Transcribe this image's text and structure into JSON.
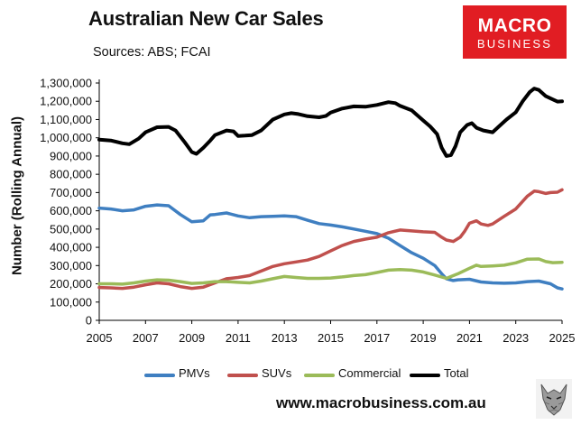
{
  "header": {
    "title": "Australian New Car Sales",
    "subtitle": "Sources: ABS; FCAI"
  },
  "logo": {
    "line1": "MACRO",
    "line2": "BUSINESS",
    "color": "#e11d23",
    "icon": "wolf-icon"
  },
  "footer": {
    "url": "www.macrobusiness.com.au"
  },
  "chart_data": {
    "type": "line",
    "title": "Australian New Car Sales",
    "ylabel": "Number (Rolling Annual)",
    "xlabel": "",
    "xlim": [
      2005,
      2025
    ],
    "ylim": [
      0,
      1300000
    ],
    "grid": false,
    "legend_position": "bottom",
    "x_ticks": [
      2005,
      2007,
      2009,
      2011,
      2013,
      2015,
      2017,
      2019,
      2021,
      2023,
      2025
    ],
    "x_tick_labels": [
      "2005",
      "2007",
      "2009",
      "2011",
      "2013",
      "2015",
      "2017",
      "2019",
      "2021",
      "2023",
      "2025"
    ],
    "y_ticks": [
      0,
      100000,
      200000,
      300000,
      400000,
      500000,
      600000,
      700000,
      800000,
      900000,
      1000000,
      1100000,
      1200000,
      1300000
    ],
    "y_tick_labels": [
      "0",
      "100,000",
      "200,000",
      "300,000",
      "400,000",
      "500,000",
      "600,000",
      "700,000",
      "800,000",
      "900,000",
      "1,000,000",
      "1,100,000",
      "1,200,000",
      "1,300,000"
    ],
    "series": [
      {
        "name": "PMVs",
        "color": "#3f7fc1",
        "points": [
          [
            2005,
            615000
          ],
          [
            2005.5,
            610000
          ],
          [
            2006,
            600000
          ],
          [
            2006.5,
            605000
          ],
          [
            2007,
            625000
          ],
          [
            2007.5,
            632000
          ],
          [
            2008,
            628000
          ],
          [
            2008.5,
            580000
          ],
          [
            2009,
            540000
          ],
          [
            2009.5,
            545000
          ],
          [
            2009.8,
            578000
          ],
          [
            2010,
            580000
          ],
          [
            2010.5,
            588000
          ],
          [
            2011,
            572000
          ],
          [
            2011.5,
            562000
          ],
          [
            2012,
            568000
          ],
          [
            2012.5,
            570000
          ],
          [
            2013,
            572000
          ],
          [
            2013.5,
            568000
          ],
          [
            2014,
            548000
          ],
          [
            2014.5,
            530000
          ],
          [
            2015,
            522000
          ],
          [
            2015.5,
            512000
          ],
          [
            2016,
            500000
          ],
          [
            2016.5,
            488000
          ],
          [
            2017,
            475000
          ],
          [
            2017.5,
            450000
          ],
          [
            2018,
            410000
          ],
          [
            2018.5,
            370000
          ],
          [
            2019,
            340000
          ],
          [
            2019.5,
            300000
          ],
          [
            2019.8,
            255000
          ],
          [
            2020,
            228000
          ],
          [
            2020.3,
            218000
          ],
          [
            2020.5,
            222000
          ],
          [
            2021,
            225000
          ],
          [
            2021.5,
            210000
          ],
          [
            2022,
            205000
          ],
          [
            2022.5,
            203000
          ],
          [
            2023,
            205000
          ],
          [
            2023.5,
            212000
          ],
          [
            2024,
            215000
          ],
          [
            2024.5,
            200000
          ],
          [
            2024.8,
            178000
          ],
          [
            2025,
            172000
          ]
        ]
      },
      {
        "name": "SUVs",
        "color": "#c0504d",
        "points": [
          [
            2005,
            180000
          ],
          [
            2005.5,
            178000
          ],
          [
            2006,
            175000
          ],
          [
            2006.5,
            182000
          ],
          [
            2007,
            195000
          ],
          [
            2007.5,
            205000
          ],
          [
            2008,
            200000
          ],
          [
            2008.5,
            185000
          ],
          [
            2009,
            175000
          ],
          [
            2009.5,
            182000
          ],
          [
            2010,
            205000
          ],
          [
            2010.5,
            228000
          ],
          [
            2011,
            235000
          ],
          [
            2011.5,
            245000
          ],
          [
            2012,
            270000
          ],
          [
            2012.5,
            295000
          ],
          [
            2013,
            310000
          ],
          [
            2013.5,
            320000
          ],
          [
            2014,
            330000
          ],
          [
            2014.5,
            350000
          ],
          [
            2015,
            380000
          ],
          [
            2015.5,
            410000
          ],
          [
            2016,
            432000
          ],
          [
            2016.5,
            445000
          ],
          [
            2017,
            455000
          ],
          [
            2017.5,
            480000
          ],
          [
            2018,
            495000
          ],
          [
            2018.5,
            490000
          ],
          [
            2019,
            485000
          ],
          [
            2019.5,
            482000
          ],
          [
            2019.8,
            455000
          ],
          [
            2020,
            440000
          ],
          [
            2020.3,
            432000
          ],
          [
            2020.6,
            455000
          ],
          [
            2020.8,
            490000
          ],
          [
            2021,
            532000
          ],
          [
            2021.3,
            545000
          ],
          [
            2021.5,
            528000
          ],
          [
            2021.8,
            520000
          ],
          [
            2022,
            528000
          ],
          [
            2022.5,
            570000
          ],
          [
            2023,
            610000
          ],
          [
            2023.5,
            680000
          ],
          [
            2023.8,
            708000
          ],
          [
            2024,
            705000
          ],
          [
            2024.3,
            695000
          ],
          [
            2024.5,
            700000
          ],
          [
            2024.8,
            702000
          ],
          [
            2025,
            715000
          ]
        ]
      },
      {
        "name": "Commercial",
        "color": "#9bbb59",
        "points": [
          [
            2005,
            200000
          ],
          [
            2005.5,
            200000
          ],
          [
            2006,
            198000
          ],
          [
            2006.5,
            205000
          ],
          [
            2007,
            215000
          ],
          [
            2007.5,
            222000
          ],
          [
            2008,
            220000
          ],
          [
            2008.5,
            212000
          ],
          [
            2009,
            202000
          ],
          [
            2009.5,
            205000
          ],
          [
            2010,
            212000
          ],
          [
            2010.5,
            212000
          ],
          [
            2011,
            208000
          ],
          [
            2011.5,
            205000
          ],
          [
            2012,
            215000
          ],
          [
            2012.5,
            228000
          ],
          [
            2013,
            240000
          ],
          [
            2013.5,
            235000
          ],
          [
            2014,
            230000
          ],
          [
            2014.5,
            230000
          ],
          [
            2015,
            232000
          ],
          [
            2015.5,
            238000
          ],
          [
            2016,
            245000
          ],
          [
            2016.5,
            250000
          ],
          [
            2017,
            262000
          ],
          [
            2017.5,
            275000
          ],
          [
            2018,
            278000
          ],
          [
            2018.5,
            275000
          ],
          [
            2019,
            265000
          ],
          [
            2019.5,
            248000
          ],
          [
            2020,
            230000
          ],
          [
            2020.5,
            255000
          ],
          [
            2021,
            285000
          ],
          [
            2021.3,
            302000
          ],
          [
            2021.5,
            295000
          ],
          [
            2022,
            298000
          ],
          [
            2022.5,
            302000
          ],
          [
            2023,
            315000
          ],
          [
            2023.5,
            335000
          ],
          [
            2024,
            336000
          ],
          [
            2024.3,
            322000
          ],
          [
            2024.6,
            316000
          ],
          [
            2025,
            318000
          ]
        ]
      },
      {
        "name": "Total",
        "color": "#000000",
        "points": [
          [
            2005,
            990000
          ],
          [
            2005.5,
            985000
          ],
          [
            2006,
            970000
          ],
          [
            2006.3,
            965000
          ],
          [
            2006.7,
            995000
          ],
          [
            2007,
            1030000
          ],
          [
            2007.5,
            1058000
          ],
          [
            2008,
            1060000
          ],
          [
            2008.3,
            1040000
          ],
          [
            2008.7,
            975000
          ],
          [
            2009,
            922000
          ],
          [
            2009.2,
            912000
          ],
          [
            2009.5,
            945000
          ],
          [
            2009.8,
            985000
          ],
          [
            2010,
            1015000
          ],
          [
            2010.5,
            1040000
          ],
          [
            2010.8,
            1035000
          ],
          [
            2011,
            1010000
          ],
          [
            2011.3,
            1012000
          ],
          [
            2011.6,
            1015000
          ],
          [
            2012,
            1040000
          ],
          [
            2012.5,
            1100000
          ],
          [
            2013,
            1128000
          ],
          [
            2013.3,
            1135000
          ],
          [
            2013.6,
            1130000
          ],
          [
            2014,
            1118000
          ],
          [
            2014.5,
            1112000
          ],
          [
            2014.8,
            1120000
          ],
          [
            2015,
            1138000
          ],
          [
            2015.5,
            1160000
          ],
          [
            2016,
            1172000
          ],
          [
            2016.5,
            1170000
          ],
          [
            2017,
            1180000
          ],
          [
            2017.5,
            1195000
          ],
          [
            2017.8,
            1190000
          ],
          [
            2018,
            1175000
          ],
          [
            2018.5,
            1150000
          ],
          [
            2019,
            1095000
          ],
          [
            2019.3,
            1062000
          ],
          [
            2019.6,
            1020000
          ],
          [
            2019.8,
            945000
          ],
          [
            2020,
            900000
          ],
          [
            2020.2,
            905000
          ],
          [
            2020.4,
            955000
          ],
          [
            2020.6,
            1030000
          ],
          [
            2020.9,
            1070000
          ],
          [
            2021.1,
            1080000
          ],
          [
            2021.3,
            1055000
          ],
          [
            2021.6,
            1040000
          ],
          [
            2022,
            1030000
          ],
          [
            2022.3,
            1065000
          ],
          [
            2022.6,
            1100000
          ],
          [
            2023,
            1140000
          ],
          [
            2023.3,
            1200000
          ],
          [
            2023.6,
            1250000
          ],
          [
            2023.8,
            1270000
          ],
          [
            2024,
            1262000
          ],
          [
            2024.3,
            1228000
          ],
          [
            2024.6,
            1210000
          ],
          [
            2024.8,
            1198000
          ],
          [
            2025,
            1200000
          ]
        ]
      }
    ]
  }
}
